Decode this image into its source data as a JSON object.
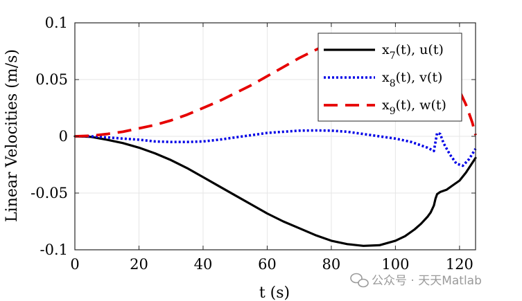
{
  "chart_data": {
    "type": "line",
    "xlabel": "t (s)",
    "ylabel": "Linear Velocities (m/s)",
    "xlim": [
      0,
      125
    ],
    "ylim": [
      -0.1,
      0.1
    ],
    "xticks": [
      0,
      20,
      40,
      60,
      80,
      100,
      120
    ],
    "xtick_labels": [
      "0",
      "20",
      "40",
      "60",
      "80",
      "100",
      "120"
    ],
    "yticks": [
      0.1,
      0.05,
      0,
      -0.05,
      -0.1
    ],
    "ytick_labels": [
      "0.1",
      "0.05",
      "0",
      "-0.05",
      "-0.1"
    ],
    "grid": true,
    "legend_position": "top-right",
    "series": [
      {
        "name": "x7(t), u(t)",
        "legend_main": "x",
        "legend_sub": "7",
        "legend_rest": "(t), u(t)",
        "color": "#000000",
        "style": "solid",
        "x": [
          0,
          5,
          10,
          15,
          20,
          25,
          30,
          35,
          40,
          45,
          50,
          55,
          60,
          65,
          70,
          75,
          80,
          85,
          90,
          95,
          100,
          103,
          106,
          108,
          110,
          111,
          112,
          112.5,
          113,
          113.5,
          114,
          116,
          118,
          120,
          122,
          125
        ],
        "y": [
          0,
          -0.0005,
          -0.003,
          -0.006,
          -0.01,
          -0.015,
          -0.021,
          -0.028,
          -0.036,
          -0.044,
          -0.052,
          -0.06,
          -0.068,
          -0.075,
          -0.081,
          -0.087,
          -0.092,
          -0.095,
          -0.0965,
          -0.096,
          -0.092,
          -0.088,
          -0.082,
          -0.077,
          -0.071,
          -0.067,
          -0.061,
          -0.055,
          -0.051,
          -0.05,
          -0.049,
          -0.047,
          -0.043,
          -0.039,
          -0.032,
          -0.019
        ]
      },
      {
        "name": "x8(t), v(t)",
        "legend_main": "x",
        "legend_sub": "8",
        "legend_rest": "(t), v(t)",
        "color": "#0000e6",
        "style": "dotted",
        "x": [
          0,
          5,
          10,
          15,
          20,
          25,
          30,
          35,
          40,
          45,
          50,
          55,
          60,
          65,
          70,
          75,
          80,
          85,
          90,
          95,
          100,
          105,
          108,
          110,
          112,
          113,
          114,
          115,
          117,
          119,
          121,
          123,
          125
        ],
        "y": [
          0,
          0,
          -0.001,
          -0.002,
          -0.003,
          -0.0045,
          -0.005,
          -0.005,
          -0.0045,
          -0.003,
          -0.001,
          0.001,
          0.003,
          0.004,
          0.005,
          0.0052,
          0.005,
          0.004,
          0.002,
          0,
          -0.002,
          -0.005,
          -0.008,
          -0.01,
          -0.013,
          0.003,
          0.002,
          -0.006,
          -0.016,
          -0.024,
          -0.026,
          -0.02,
          -0.011
        ]
      },
      {
        "name": "x9(t), w(t)",
        "legend_main": "x",
        "legend_sub": "9",
        "legend_rest": "(t), w(t)",
        "color": "#e60000",
        "style": "dashed",
        "x": [
          0,
          5,
          10,
          15,
          20,
          25,
          30,
          35,
          40,
          45,
          50,
          55,
          60,
          65,
          70,
          75,
          80,
          85,
          90,
          95,
          100,
          105,
          110,
          115,
          118,
          120,
          122,
          124,
          125
        ],
        "y": [
          0,
          0.0005,
          0.002,
          0.004,
          0.007,
          0.01,
          0.014,
          0.019,
          0.025,
          0.031,
          0.038,
          0.045,
          0.053,
          0.061,
          0.069,
          0.076,
          0.083,
          0.088,
          0.09,
          0.089,
          0.086,
          0.08,
          0.072,
          0.06,
          0.05,
          0.04,
          0.028,
          0.012,
          0.001
        ]
      }
    ]
  },
  "watermark": "公众号 · 天天Matlab"
}
